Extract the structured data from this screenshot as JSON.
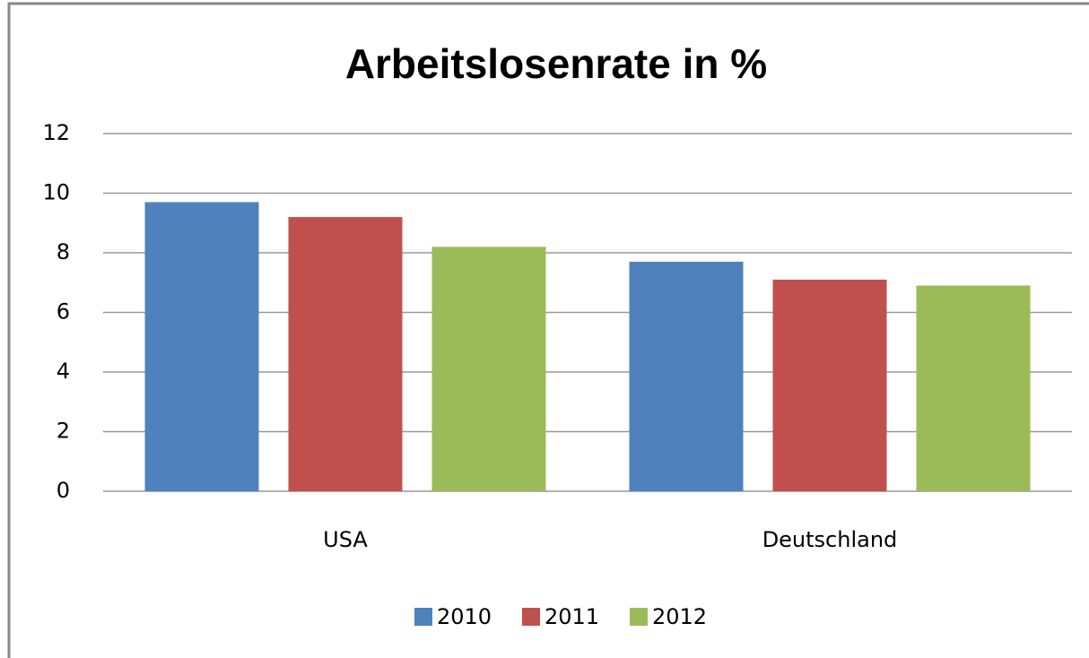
{
  "chart_data": {
    "type": "bar",
    "title": "Arbeitslosenrate in %",
    "categories": [
      "USA",
      "Deutschland"
    ],
    "series": [
      {
        "name": "2010",
        "color": "#4f81bd",
        "values": [
          9.7,
          7.7
        ]
      },
      {
        "name": "2011",
        "color": "#c0504d",
        "values": [
          9.2,
          7.1
        ]
      },
      {
        "name": "2012",
        "color": "#9bbb59",
        "values": [
          8.2,
          6.9
        ]
      }
    ],
    "ylim": [
      0,
      12
    ],
    "yticks": [
      0,
      2,
      4,
      6,
      8,
      10,
      12
    ],
    "grid": true,
    "legend": "bottom"
  }
}
